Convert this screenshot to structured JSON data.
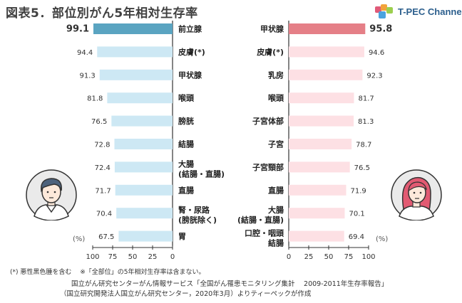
{
  "title": "図表5．部位別がん5年相対生存率",
  "brand": {
    "name": "T-PEC Channel",
    "logo_colors": [
      "#e05a78",
      "#f2a33a",
      "#9ccf4e",
      "#4aa3df"
    ]
  },
  "chart_data": [
    {
      "type": "bar",
      "orientation": "horizontal",
      "direction": "right-to-left",
      "group": "male",
      "categories": [
        "前立腺",
        "皮膚(*)",
        "甲状腺",
        "喉頭",
        "膀胱",
        "結腸",
        "大腸\n(結腸・直腸)",
        "直腸",
        "腎・尿路\n(膀胱除く)",
        "胃"
      ],
      "values": [
        99.1,
        94.4,
        91.3,
        81.8,
        76.5,
        72.8,
        72.4,
        71.7,
        70.4,
        67.5
      ],
      "value_labels": [
        "99.1",
        "94.4",
        "91.3",
        "81.8",
        "76.5",
        "72.8",
        "72.4",
        "71.7",
        "70.4",
        "67.5"
      ],
      "highlight_index": 0,
      "colors": {
        "bar": "#cde8f4",
        "highlight": "#5aa4c1"
      },
      "xlim": [
        0,
        100
      ],
      "xticks": [
        "100",
        "75",
        "50",
        "25",
        "0"
      ],
      "unit_label": "(%)"
    },
    {
      "type": "bar",
      "orientation": "horizontal",
      "direction": "left-to-right",
      "group": "female",
      "categories": [
        "甲状腺",
        "皮膚(*)",
        "乳房",
        "喉頭",
        "子宮体部",
        "子宮",
        "子宮頸部",
        "直腸",
        "大腸\n(結腸・直腸)",
        "口腔・咽頭\n結腸"
      ],
      "values": [
        95.8,
        94.6,
        92.3,
        81.7,
        81.3,
        78.7,
        76.5,
        71.9,
        70.1,
        69.4
      ],
      "value_labels": [
        "95.8",
        "94.6",
        "92.3",
        "81.7",
        "81.3",
        "78.7",
        "76.5",
        "71.9",
        "70.1",
        "69.4"
      ],
      "highlight_index": 0,
      "colors": {
        "bar": "#fde0e4",
        "highlight": "#e57f87"
      },
      "xlim": [
        0,
        100
      ],
      "xticks": [
        "0",
        "25",
        "50",
        "75",
        "100"
      ],
      "unit_label": "(%)"
    }
  ],
  "avatars": {
    "male": {
      "skin": "#fde9da",
      "hair": "#4d627c",
      "shirt": "#ffffff",
      "bg": "#eaeaea",
      "icon": "man-avatar-icon"
    },
    "female": {
      "skin": "#fde9da",
      "hair": "#e25a72",
      "shirt": "#ffffff",
      "bg": "#eaeaea",
      "icon": "woman-avatar-icon"
    }
  },
  "footnote": "(*) 悪性黒色腫を含む　 ※「全部位」の5年相対生存率は含まない。",
  "source_line1": "国立がん研究センターがん情報サービス「全国がん罹患モニタリング集計　 2009-2011年生存率報告」",
  "source_line2": "（国立研究開発法人国立がん研究センター，2020年3月）よりティーペックが作成"
}
